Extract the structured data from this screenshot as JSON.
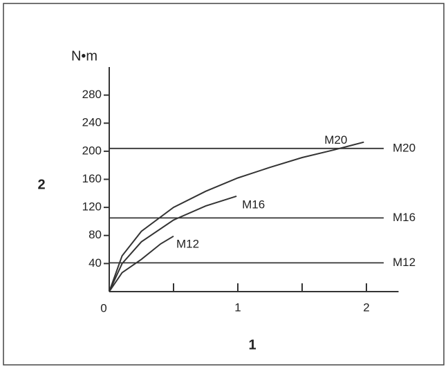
{
  "chart_data": {
    "type": "line",
    "y_label": "N•m",
    "y_axis_title": "2",
    "x_axis_title": "1",
    "xlim": [
      0,
      2.25
    ],
    "xticks": [
      0,
      1,
      2
    ],
    "xminorticks": [
      0.5,
      1.5
    ],
    "ylim": [
      0,
      320
    ],
    "yticks": [
      40,
      80,
      120,
      160,
      200,
      240,
      280
    ],
    "origin_label": "0",
    "color": "#333333",
    "series": [
      {
        "name": "M20",
        "x": [
          0,
          0.1,
          0.25,
          0.5,
          0.75,
          1,
          1.25,
          1.5,
          1.75,
          1.98
        ],
        "values": [
          0,
          51,
          86,
          120,
          143,
          162,
          177,
          191,
          202,
          213
        ]
      },
      {
        "name": "M16",
        "x": [
          0,
          0.1,
          0.25,
          0.5,
          0.75,
          0.99
        ],
        "values": [
          0,
          40,
          71,
          102,
          122,
          136
        ]
      },
      {
        "name": "M12",
        "x": [
          0,
          0.1,
          0.25,
          0.4,
          0.5
        ],
        "values": [
          0,
          27,
          46,
          68,
          79
        ]
      }
    ],
    "hlines": [
      {
        "name": "M20",
        "value": 204
      },
      {
        "name": "M16",
        "value": 105
      },
      {
        "name": "M12",
        "value": 41
      }
    ]
  }
}
